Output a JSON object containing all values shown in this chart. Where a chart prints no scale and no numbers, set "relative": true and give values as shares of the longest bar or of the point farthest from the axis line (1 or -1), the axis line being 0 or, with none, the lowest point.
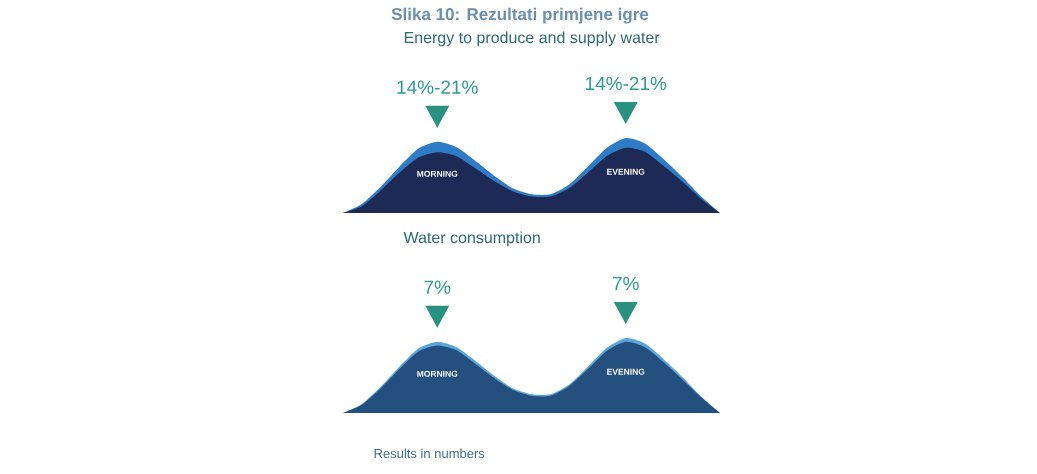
{
  "chart_data": [
    {
      "type": "area",
      "relative": true,
      "title": "Energy to produce and supply water",
      "categories": [
        null,
        null,
        null,
        null,
        null,
        null,
        null,
        null,
        null,
        null,
        null,
        null,
        null,
        null,
        null,
        null,
        null,
        null,
        null,
        null,
        null
      ],
      "series": [
        {
          "color": "#2f7cc6",
          "values": [
            0,
            0.12,
            0.35,
            0.62,
            0.86,
            0.95,
            0.88,
            0.7,
            0.5,
            0.33,
            0.25,
            0.25,
            0.38,
            0.62,
            0.87,
            1.0,
            0.93,
            0.72,
            0.48,
            0.22,
            0
          ]
        },
        {
          "color": "#1c2a55",
          "values": [
            0,
            0.09,
            0.3,
            0.54,
            0.74,
            0.81,
            0.76,
            0.6,
            0.43,
            0.29,
            0.22,
            0.22,
            0.33,
            0.54,
            0.76,
            0.87,
            0.82,
            0.63,
            0.42,
            0.19,
            0
          ]
        }
      ],
      "annotations": [
        "14%-21%",
        "14%-21%",
        "MORNING",
        "EVENING",
        "Slika 10: Rezultati primjene igre"
      ]
    },
    {
      "type": "area",
      "relative": true,
      "title": "Water consumption",
      "categories": [
        null,
        null,
        null,
        null,
        null,
        null,
        null,
        null,
        null,
        null,
        null,
        null,
        null,
        null,
        null,
        null,
        null,
        null,
        null,
        null,
        null
      ],
      "series": [
        {
          "color": "#5aa6dc",
          "values": [
            0,
            0.12,
            0.35,
            0.62,
            0.86,
            0.95,
            0.88,
            0.7,
            0.5,
            0.33,
            0.25,
            0.25,
            0.38,
            0.62,
            0.87,
            1.0,
            0.93,
            0.72,
            0.48,
            0.22,
            0
          ]
        },
        {
          "color": "#24507f",
          "values": [
            0,
            0.11,
            0.33,
            0.59,
            0.82,
            0.9,
            0.84,
            0.66,
            0.47,
            0.31,
            0.23,
            0.23,
            0.36,
            0.59,
            0.83,
            0.95,
            0.88,
            0.68,
            0.45,
            0.21,
            0
          ]
        }
      ],
      "annotations": [
        "7%",
        "7%",
        "MORNING",
        "EVENING",
        "Results in numbers"
      ]
    }
  ]
}
